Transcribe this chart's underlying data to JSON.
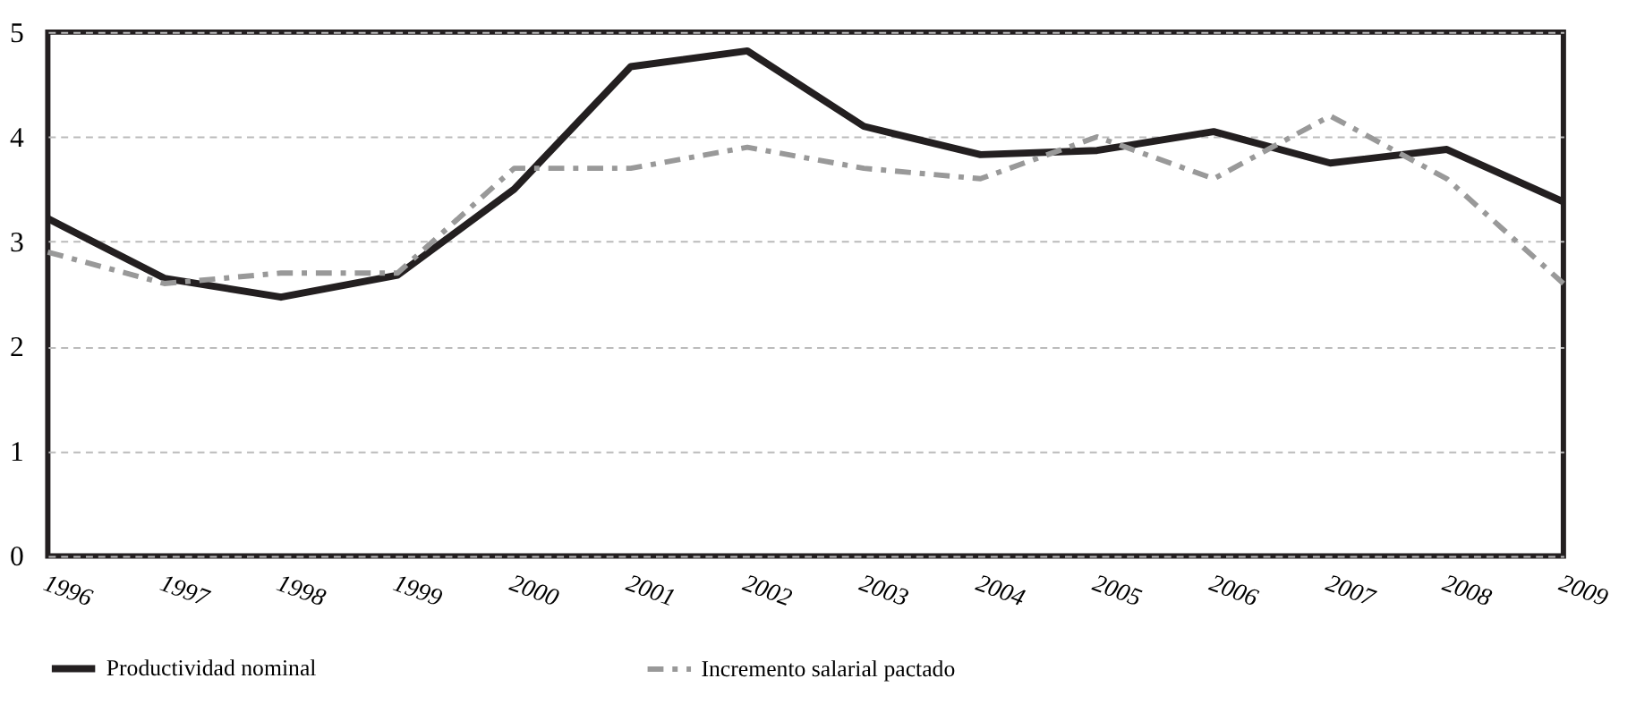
{
  "chart_data": {
    "type": "line",
    "categories": [
      "1996",
      "1997",
      "1998",
      "1999",
      "2000",
      "2001",
      "2002",
      "2003",
      "2004",
      "2005",
      "2006",
      "2007",
      "2008",
      "2009"
    ],
    "series": [
      {
        "name": "Productividad nominal",
        "color": "#231f20",
        "line_style": "solid",
        "values": [
          3.22,
          2.65,
          2.47,
          2.68,
          3.5,
          4.67,
          4.82,
          4.1,
          3.83,
          3.87,
          4.05,
          3.75,
          3.88,
          3.38
        ]
      },
      {
        "name": "Incremento salarial pactado",
        "color": "#999999",
        "line_style": "dashed",
        "values": [
          2.9,
          2.6,
          2.7,
          2.7,
          3.7,
          3.7,
          3.9,
          3.7,
          3.6,
          4.0,
          3.6,
          4.2,
          3.6,
          2.6
        ]
      }
    ],
    "ylim": [
      0,
      5
    ],
    "yticks": [
      0,
      1,
      2,
      3,
      4,
      5
    ],
    "grid": "y",
    "legend": "bottom",
    "marker": "none"
  }
}
